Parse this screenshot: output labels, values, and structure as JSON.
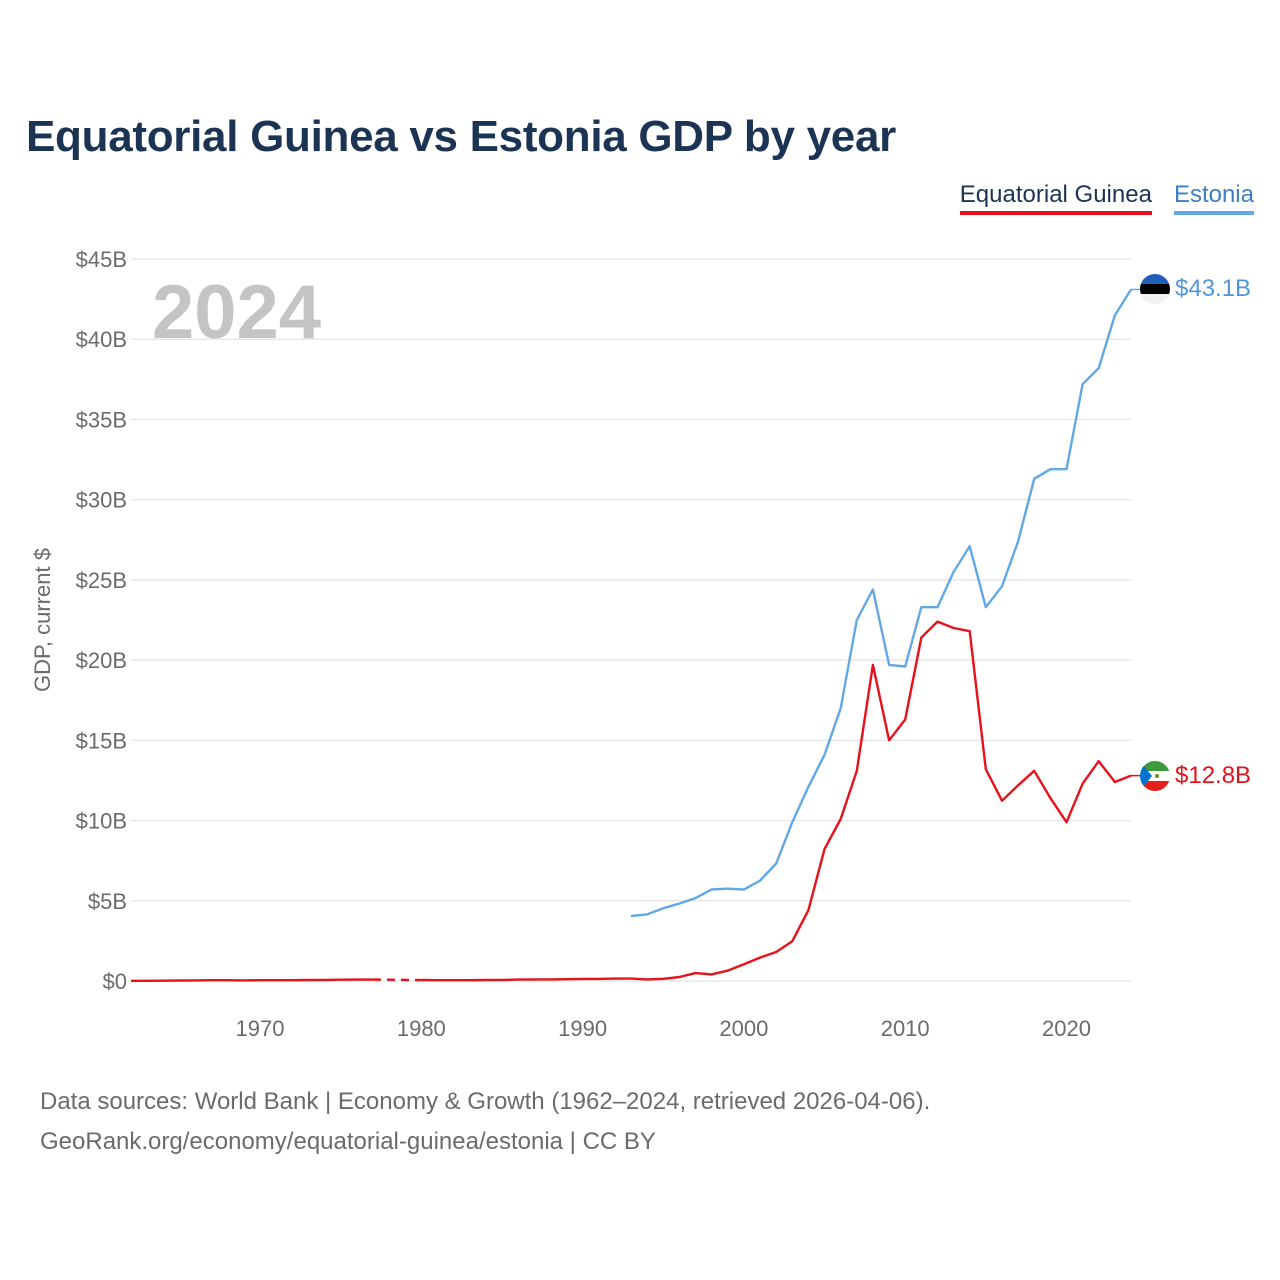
{
  "title": "Equatorial Guinea vs Estonia GDP by year",
  "legend": [
    {
      "name": "Equatorial Guinea",
      "color": "#e8111a"
    },
    {
      "name": "Estonia",
      "color": "#62a8e5"
    }
  ],
  "footer": {
    "line1": "Data sources: World Bank | Economy & Growth (1962–2024, retrieved 2026-04-06).",
    "line2": "GeoRank.org/economy/equatorial-guinea/estonia | CC BY"
  },
  "chart_data": {
    "type": "line",
    "title": "Equatorial Guinea vs Estonia GDP by year",
    "xlabel": "",
    "ylabel": "GDP, current $",
    "year_label": "2024",
    "xlim": [
      1962,
      2024
    ],
    "ylim": [
      0,
      45
    ],
    "y_unit": "billions USD",
    "y_ticks": [
      0,
      5,
      10,
      15,
      20,
      25,
      30,
      35,
      40,
      45
    ],
    "y_tick_labels": [
      "$0",
      "$5B",
      "$10B",
      "$15B",
      "$20B",
      "$25B",
      "$30B",
      "$35B",
      "$40B",
      "$45B"
    ],
    "x_ticks": [
      1970,
      1980,
      1990,
      2000,
      2010,
      2020
    ],
    "x_tick_labels": [
      "1970",
      "1980",
      "1990",
      "2000",
      "2010",
      "2020"
    ],
    "grid": true,
    "legend_position": "top-right",
    "series": [
      {
        "name": "Equatorial Guinea",
        "color": "#e8111a",
        "end_label": "$12.8B",
        "gap": [
          1977,
          1980
        ],
        "x": [
          1962,
          1963,
          1964,
          1965,
          1966,
          1967,
          1968,
          1969,
          1970,
          1971,
          1972,
          1973,
          1974,
          1975,
          1976,
          1977,
          1980,
          1981,
          1982,
          1983,
          1984,
          1985,
          1986,
          1987,
          1988,
          1989,
          1990,
          1991,
          1992,
          1993,
          1994,
          1995,
          1996,
          1997,
          1998,
          1999,
          2000,
          2001,
          2002,
          2003,
          2004,
          2005,
          2006,
          2007,
          2008,
          2009,
          2010,
          2011,
          2012,
          2013,
          2014,
          2015,
          2016,
          2017,
          2018,
          2019,
          2020,
          2021,
          2022,
          2023,
          2024
        ],
        "values": [
          0.01,
          0.01,
          0.02,
          0.03,
          0.04,
          0.05,
          0.05,
          0.04,
          0.05,
          0.05,
          0.05,
          0.06,
          0.07,
          0.08,
          0.09,
          0.09,
          0.06,
          0.05,
          0.05,
          0.05,
          0.06,
          0.07,
          0.09,
          0.1,
          0.1,
          0.11,
          0.13,
          0.13,
          0.15,
          0.15,
          0.1,
          0.14,
          0.25,
          0.49,
          0.41,
          0.65,
          1.05,
          1.46,
          1.81,
          2.48,
          4.41,
          8.22,
          10.1,
          13.1,
          19.7,
          15.0,
          16.3,
          21.4,
          22.4,
          22.0,
          21.8,
          13.2,
          11.24,
          12.2,
          13.1,
          11.4,
          9.9,
          12.3,
          13.7,
          12.4,
          12.8
        ]
      },
      {
        "name": "Estonia",
        "color": "#62a8e5",
        "end_label": "$43.1B",
        "x": [
          1993,
          1994,
          1995,
          1996,
          1997,
          1998,
          1999,
          2000,
          2001,
          2002,
          2003,
          2004,
          2005,
          2006,
          2007,
          2008,
          2009,
          2010,
          2011,
          2012,
          2013,
          2014,
          2015,
          2016,
          2017,
          2018,
          2019,
          2020,
          2021,
          2022,
          2023,
          2024
        ],
        "values": [
          4.05,
          4.15,
          4.54,
          4.83,
          5.17,
          5.7,
          5.75,
          5.7,
          6.25,
          7.33,
          9.9,
          12.1,
          14.1,
          17.0,
          22.5,
          24.4,
          19.7,
          19.6,
          23.3,
          23.3,
          25.5,
          27.1,
          23.3,
          24.6,
          27.4,
          31.3,
          31.9,
          31.9,
          37.2,
          38.2,
          41.5,
          43.1
        ]
      }
    ]
  }
}
